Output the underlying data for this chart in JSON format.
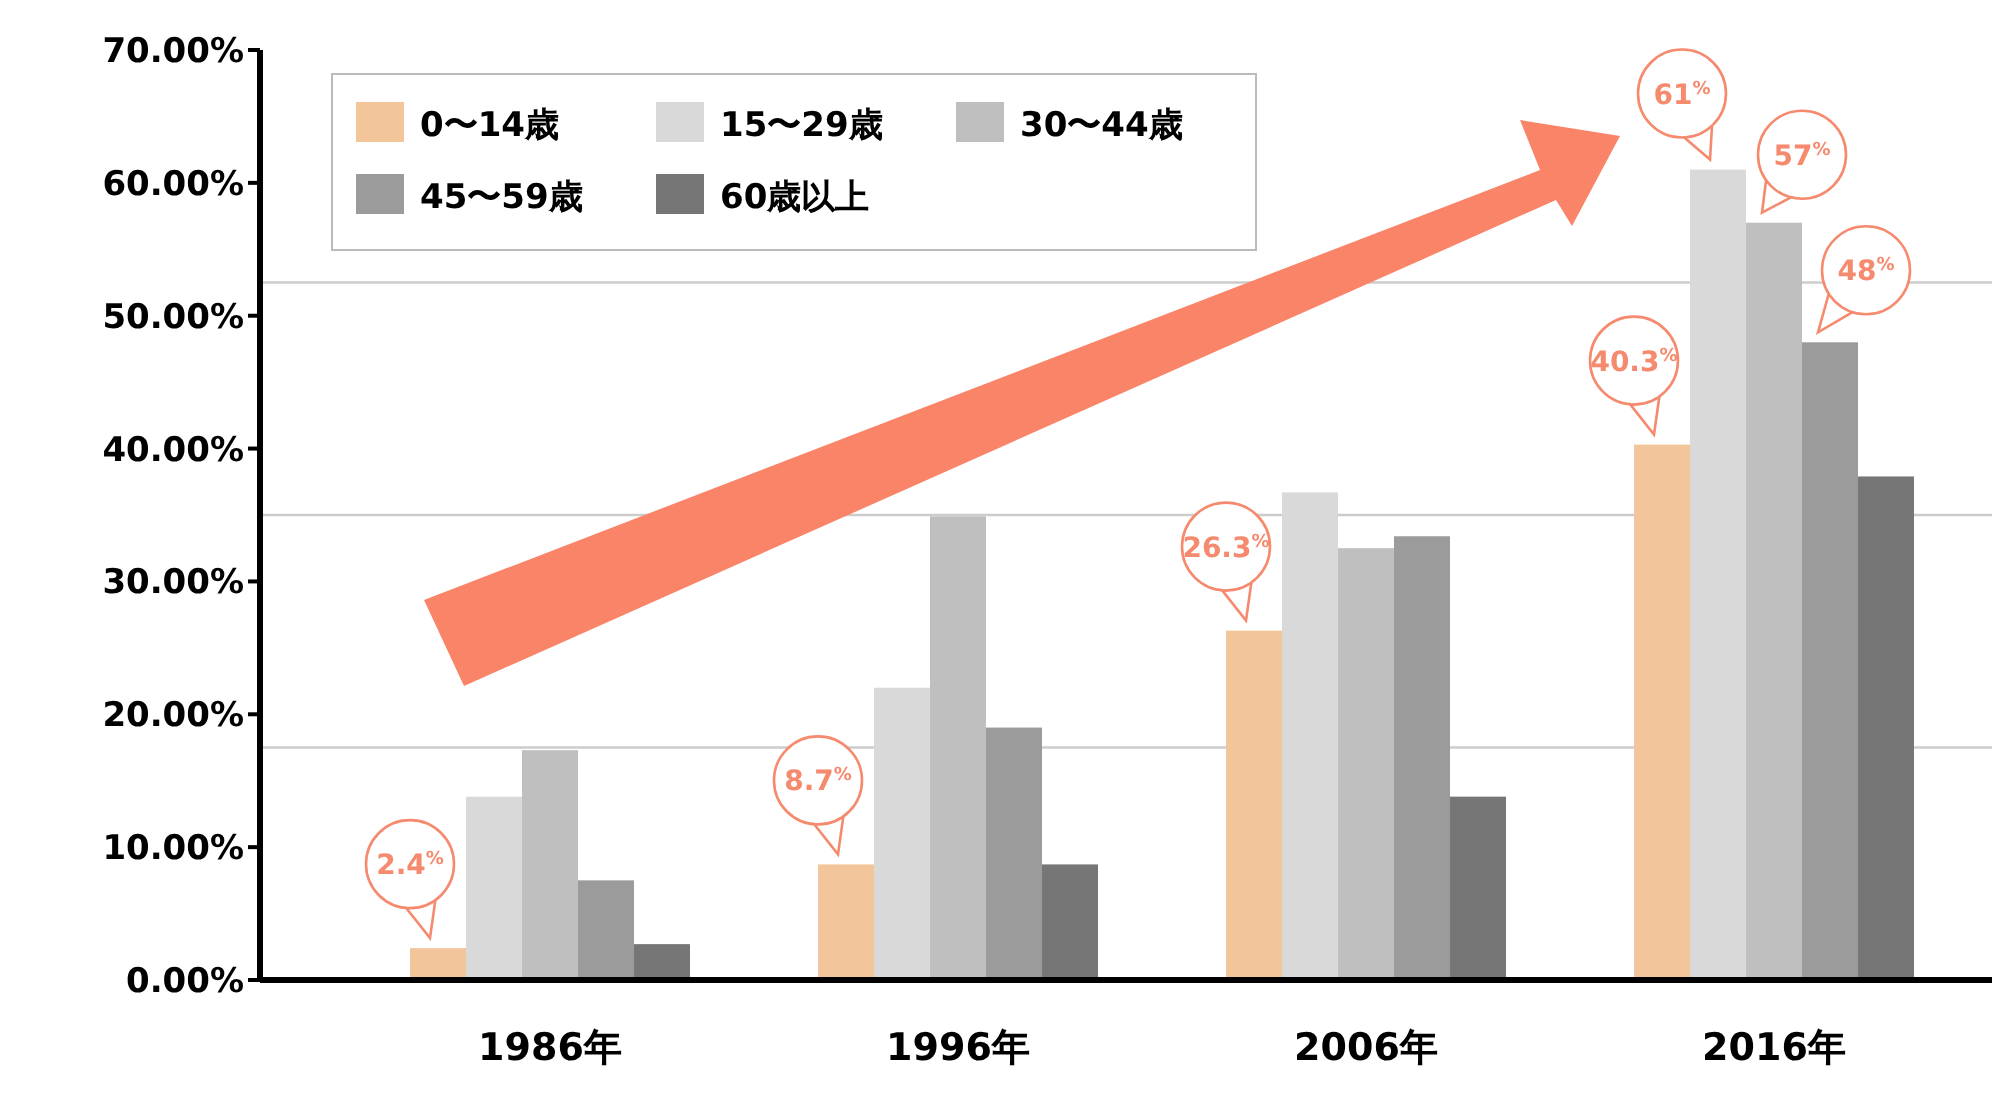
{
  "chart_data": {
    "type": "bar",
    "categories": [
      "1986年",
      "1996年",
      "2006年",
      "2016年"
    ],
    "series": [
      {
        "name": "0〜14歳",
        "color": "#f3c59a",
        "values": [
          2.4,
          8.7,
          26.3,
          40.3
        ],
        "value_labels": [
          "2.4$^{%}$",
          "8.7$^{%}$",
          "26.3$^{%}$",
          "40.3$^{%}$"
        ]
      },
      {
        "name": "15〜29歳",
        "color": "#d9d9d9",
        "values": [
          13.8,
          22.0,
          36.7,
          61
        ],
        "value_labels": [
          null,
          null,
          null,
          "61$^{%}$"
        ]
      },
      {
        "name": "30〜44歳",
        "color": "#c0bfc0",
        "values": [
          17.3,
          34.9,
          32.5,
          57
        ],
        "value_labels": [
          null,
          null,
          null,
          "57$^{%}$"
        ]
      },
      {
        "name": "45〜59歳",
        "color": "#9b9b9b",
        "values": [
          7.5,
          19.0,
          33.4,
          48
        ],
        "value_labels": [
          null,
          null,
          null,
          "48$^{%}$"
        ]
      },
      {
        "name": "60歳以上",
        "color": "#767676",
        "values": [
          2.7,
          8.7,
          13.8,
          37.9
        ]
      }
    ],
    "ylim": [
      0,
      70
    ],
    "yticks": [
      {
        "value": 0,
        "label": "0.00%"
      },
      {
        "value": 10,
        "label": "10.00%"
      },
      {
        "value": 20,
        "label": "20.00%"
      },
      {
        "value": 30,
        "label": "30.00%"
      },
      {
        "value": 40,
        "label": "40.00%"
      },
      {
        "value": 50,
        "label": "50.00%"
      },
      {
        "value": 60,
        "label": "60.00%"
      },
      {
        "value": 70,
        "label": "70.00%"
      }
    ],
    "ref_lines": [
      {
        "axis": "y",
        "value": 17.5,
        "color": "#cccccc"
      },
      {
        "axis": "y",
        "value": 35,
        "color": "#cccccc"
      },
      {
        "axis": "y",
        "value": 52.5,
        "color": "#cccccc"
      }
    ],
    "legend": "top left"
  }
}
